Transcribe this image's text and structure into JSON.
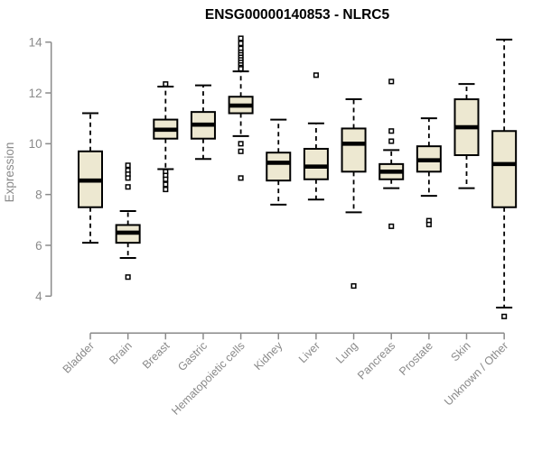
{
  "chart_data": {
    "type": "boxplot",
    "title": "ENSG00000140853 - NLRC5",
    "ylabel": "Expression",
    "xlabel": "",
    "ylim": [
      3.0,
      14.3
    ],
    "yticks": [
      4,
      6,
      8,
      10,
      12,
      14
    ],
    "grid": false,
    "legend": false,
    "categories": [
      "Bladder",
      "Brain",
      "Breast",
      "Gastric",
      "Hematopoietic cells",
      "Kidney",
      "Liver",
      "Lung",
      "Pancreas",
      "Prostate",
      "Skin",
      "Unknown / Other"
    ],
    "boxes": [
      {
        "category": "Bladder",
        "whisker_low": 6.1,
        "q1": 7.5,
        "median": 8.55,
        "q3": 9.7,
        "whisker_high": 11.2,
        "outliers": []
      },
      {
        "category": "Brain",
        "whisker_low": 5.5,
        "q1": 6.1,
        "median": 6.5,
        "q3": 6.8,
        "whisker_high": 7.35,
        "outliers": [
          9.15,
          8.95,
          8.8,
          8.65,
          8.3,
          4.75
        ]
      },
      {
        "category": "Breast",
        "whisker_low": 9.0,
        "q1": 10.2,
        "median": 10.55,
        "q3": 10.95,
        "whisker_high": 12.25,
        "outliers": [
          12.35,
          8.9,
          8.75,
          8.6,
          8.4,
          8.2
        ]
      },
      {
        "category": "Gastric",
        "whisker_low": 9.4,
        "q1": 10.2,
        "median": 10.75,
        "q3": 11.25,
        "whisker_high": 12.3,
        "outliers": []
      },
      {
        "category": "Hematopoietic cells",
        "whisker_low": 10.3,
        "q1": 11.2,
        "median": 11.5,
        "q3": 11.85,
        "whisker_high": 12.85,
        "outliers": [
          14.15,
          13.95,
          13.75,
          13.6,
          13.5,
          13.4,
          13.3,
          13.2,
          13.1,
          13.0,
          12.95,
          10.0,
          9.7,
          8.65
        ]
      },
      {
        "category": "Kidney",
        "whisker_low": 7.6,
        "q1": 8.55,
        "median": 9.25,
        "q3": 9.65,
        "whisker_high": 10.95,
        "outliers": []
      },
      {
        "category": "Liver",
        "whisker_low": 7.8,
        "q1": 8.6,
        "median": 9.1,
        "q3": 9.8,
        "whisker_high": 10.8,
        "outliers": [
          12.7
        ]
      },
      {
        "category": "Lung",
        "whisker_low": 7.3,
        "q1": 8.9,
        "median": 10.0,
        "q3": 10.6,
        "whisker_high": 11.75,
        "outliers": [
          4.4
        ]
      },
      {
        "category": "Pancreas",
        "whisker_low": 8.25,
        "q1": 8.6,
        "median": 8.9,
        "q3": 9.2,
        "whisker_high": 9.75,
        "outliers": [
          12.45,
          10.5,
          10.1,
          6.75
        ]
      },
      {
        "category": "Prostate",
        "whisker_low": 7.95,
        "q1": 8.9,
        "median": 9.35,
        "q3": 9.9,
        "whisker_high": 11.0,
        "outliers": [
          6.97,
          6.82
        ]
      },
      {
        "category": "Skin",
        "whisker_low": 8.25,
        "q1": 9.55,
        "median": 10.65,
        "q3": 11.75,
        "whisker_high": 12.35,
        "outliers": []
      },
      {
        "category": "Unknown / Other",
        "whisker_low": 3.55,
        "q1": 7.5,
        "median": 9.2,
        "q3": 10.5,
        "whisker_high": 14.1,
        "outliers": [
          3.2
        ]
      }
    ],
    "colors": {
      "box_fill": "#EDE8D1",
      "box_border": "#000000",
      "median": "#000000",
      "whisker": "#000000",
      "outlier": "#000000",
      "axis": "#8a8a8a",
      "tick_label": "#8a8a8a",
      "title": "#000000"
    }
  }
}
